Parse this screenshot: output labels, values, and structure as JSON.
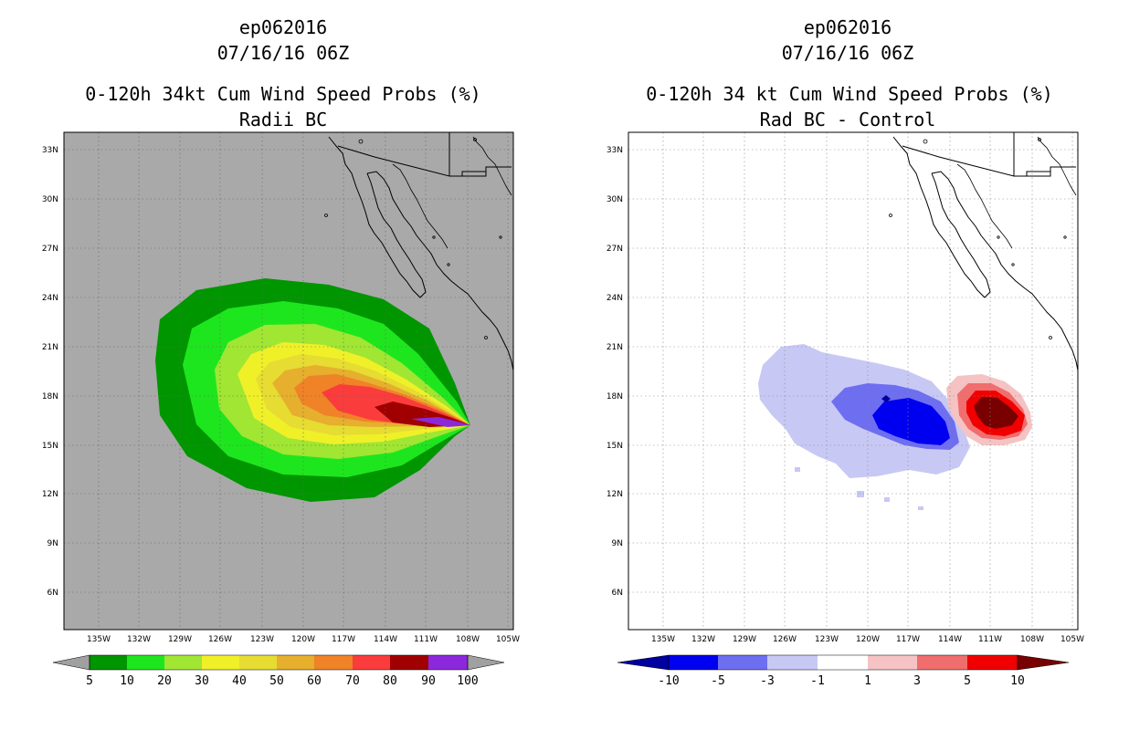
{
  "panels": [
    {
      "id": "left",
      "storm_id": "ep062016",
      "datetime": "07/16/16 06Z",
      "title": "0-120h 34kt Cum Wind Speed Probs (%)",
      "subtitle": "Radii BC",
      "lat_labels": [
        "33N",
        "30N",
        "27N",
        "24N",
        "21N",
        "18N",
        "15N",
        "12N",
        "9N",
        "6N"
      ],
      "lon_labels": [
        "135W",
        "132W",
        "129W",
        "126W",
        "123W",
        "120W",
        "117W",
        "114W",
        "111W",
        "108W",
        "105W"
      ],
      "colorbar": {
        "labels": [
          "5",
          "10",
          "20",
          "30",
          "40",
          "50",
          "60",
          "70",
          "80",
          "90",
          "100"
        ],
        "colors": [
          "#009600",
          "#1ee61e",
          "#a0e632",
          "#f0f028",
          "#e6dc32",
          "#e6af2d",
          "#f08228",
          "#fa3c3c",
          "#a00000",
          "#8c28dc"
        ],
        "under_color": "#a0a0a0",
        "over_color": "#a0a0a0"
      }
    },
    {
      "id": "right",
      "storm_id": "ep062016",
      "datetime": "07/16/16 06Z",
      "title": "0-120h 34 kt Cum Wind Speed Probs (%)",
      "subtitle": "Rad BC - Control",
      "lat_labels": [
        "33N",
        "30N",
        "27N",
        "24N",
        "21N",
        "18N",
        "15N",
        "12N",
        "9N",
        "6N"
      ],
      "lon_labels": [
        "135W",
        "132W",
        "129W",
        "126W",
        "123W",
        "120W",
        "117W",
        "114W",
        "111W",
        "108W",
        "105W"
      ],
      "colorbar": {
        "labels": [
          "-10",
          "-5",
          "-3",
          "-1",
          "1",
          "3",
          "5",
          "10"
        ],
        "colors": [
          "#0000f0",
          "#6e6ef0",
          "#c8c8f5",
          "#ffffff",
          "#f5c3c3",
          "#f06e6e",
          "#f00000"
        ],
        "under_color": "#0000a0",
        "over_color": "#780000"
      }
    }
  ]
}
